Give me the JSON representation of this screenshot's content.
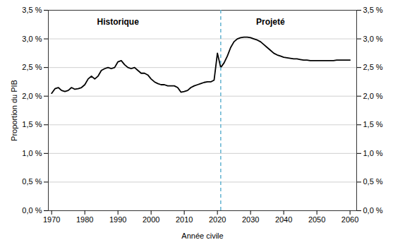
{
  "chart_data": {
    "type": "line",
    "xlabel": "Année civile",
    "ylabel": "Proportion du PIB",
    "color": "#000000",
    "x": [
      1970,
      1971,
      1972,
      1973,
      1974,
      1975,
      1976,
      1977,
      1978,
      1979,
      1980,
      1981,
      1982,
      1983,
      1984,
      1985,
      1986,
      1987,
      1988,
      1989,
      1990,
      1991,
      1992,
      1993,
      1994,
      1995,
      1996,
      1997,
      1998,
      1999,
      2000,
      2001,
      2002,
      2003,
      2004,
      2005,
      2006,
      2007,
      2008,
      2009,
      2010,
      2011,
      2012,
      2013,
      2014,
      2015,
      2016,
      2017,
      2018,
      2019,
      2020,
      2021,
      2022,
      2023,
      2024,
      2025,
      2026,
      2027,
      2028,
      2029,
      2030,
      2031,
      2032,
      2033,
      2034,
      2035,
      2036,
      2037,
      2038,
      2039,
      2040,
      2041,
      2042,
      2043,
      2044,
      2045,
      2046,
      2047,
      2048,
      2049,
      2050,
      2051,
      2052,
      2053,
      2054,
      2055,
      2056,
      2057,
      2058,
      2059,
      2060
    ],
    "values": [
      0.0205,
      0.0213,
      0.0215,
      0.021,
      0.0208,
      0.021,
      0.0215,
      0.0212,
      0.0213,
      0.0215,
      0.022,
      0.023,
      0.0235,
      0.023,
      0.0235,
      0.0245,
      0.0248,
      0.025,
      0.0248,
      0.025,
      0.026,
      0.0262,
      0.0255,
      0.025,
      0.0248,
      0.025,
      0.0245,
      0.024,
      0.024,
      0.0237,
      0.023,
      0.0225,
      0.0222,
      0.022,
      0.022,
      0.0218,
      0.0218,
      0.0218,
      0.0215,
      0.0207,
      0.0208,
      0.021,
      0.0215,
      0.0218,
      0.022,
      0.0222,
      0.0224,
      0.0225,
      0.0225,
      0.0228,
      0.0275,
      0.025,
      0.0258,
      0.027,
      0.0285,
      0.0295,
      0.03,
      0.0302,
      0.0303,
      0.0303,
      0.0302,
      0.03,
      0.0298,
      0.0295,
      0.029,
      0.0285,
      0.028,
      0.0275,
      0.0272,
      0.027,
      0.0268,
      0.0267,
      0.0266,
      0.0265,
      0.0265,
      0.0264,
      0.0263,
      0.0263,
      0.0262,
      0.0262,
      0.0262,
      0.0262,
      0.0262,
      0.0262,
      0.0262,
      0.0262,
      0.0263,
      0.0263,
      0.0263,
      0.0263,
      0.0263
    ],
    "xlim": [
      1969,
      2062
    ],
    "xticks": [
      1970,
      1980,
      1990,
      2000,
      2010,
      2020,
      2030,
      2040,
      2050,
      2060
    ],
    "ylim": [
      0,
      0.035
    ],
    "yticks": [
      {
        "value": 0,
        "label": "0,0 %"
      },
      {
        "value": 0.005,
        "label": "0,5 %"
      },
      {
        "value": 0.01,
        "label": "1,0 %"
      },
      {
        "value": 0.015,
        "label": "1,5 %"
      },
      {
        "value": 0.02,
        "label": "2,0 %"
      },
      {
        "value": 0.025,
        "label": "2,5 %"
      },
      {
        "value": 0.03,
        "label": "3,0 %"
      },
      {
        "value": 0.035,
        "label": "3,5 %"
      }
    ],
    "y2lim": [
      0,
      0.035
    ],
    "y2ticks": [
      {
        "value": 0,
        "label": "0,0 %"
      },
      {
        "value": 0.005,
        "label": "0,5 %"
      },
      {
        "value": 0.01,
        "label": "1,0 %"
      },
      {
        "value": 0.015,
        "label": "1,5 %"
      },
      {
        "value": 0.02,
        "label": "2,0 %"
      },
      {
        "value": 0.025,
        "label": "2,5 %"
      },
      {
        "value": 0.03,
        "label": "3,0 %"
      },
      {
        "value": 0.035,
        "label": "3,5 %"
      }
    ],
    "grid": true,
    "vline": {
      "x": 2021,
      "color": "#62B3D0",
      "line_style": "dashed"
    },
    "annotations": [
      {
        "text": "Historique",
        "x": 1990,
        "y": 0.0335
      },
      {
        "text": "Projeté",
        "x": 2036,
        "y": 0.0335
      }
    ]
  }
}
